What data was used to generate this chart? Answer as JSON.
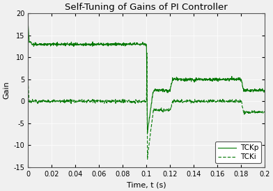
{
  "title": "Self-Tuning of Gains of PI Controller",
  "xlabel": "Time, t (s)",
  "ylabel": "Gain",
  "xlim": [
    0,
    0.2
  ],
  "ylim": [
    -15,
    20
  ],
  "color": "#007700",
  "legend_entries": [
    "TCKp",
    "TCKi"
  ],
  "xticks": [
    0,
    0.02,
    0.04,
    0.06,
    0.08,
    0.1,
    0.12,
    0.14,
    0.16,
    0.18,
    0.2
  ],
  "yticks": [
    -15,
    -10,
    -5,
    0,
    5,
    10,
    15,
    20
  ],
  "bg_color": "#f0f0f0",
  "fig_color": "#f0f0f0",
  "title_fontsize": 9.5,
  "label_fontsize": 8,
  "tick_fontsize": 7,
  "legend_fontsize": 7.5
}
